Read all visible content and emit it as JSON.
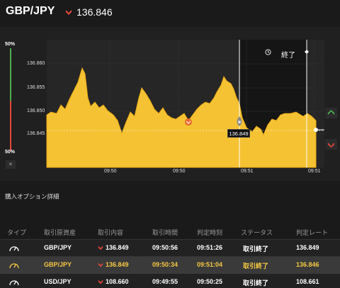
{
  "header": {
    "pair": "GBP/JPY",
    "price": "136.846",
    "arrow_icon": "down-arrow-icon",
    "arrow_color": "#e5473b"
  },
  "chart": {
    "pct_top": "50%",
    "pct_bottom": "50%",
    "close_label": "×",
    "y_ticks": [
      "136.860",
      "136.855",
      "136.850",
      "136.845"
    ],
    "x_ticks": [
      "09:50",
      "09:50",
      "09:51",
      "09:51"
    ],
    "end_label": "終了",
    "end_icon": "clock-icon",
    "current_price_tag": "136.849",
    "fill_color": "#f5c233",
    "up_button_icon": "up-arrow-icon",
    "down_button_icon": "down-arrow-icon",
    "up_color": "#4caf50",
    "down_color": "#e5473b"
  },
  "section": {
    "title": "購入オプション詳細"
  },
  "table": {
    "headers": [
      "タイプ",
      "取引原資産",
      "取引内容",
      "取引時間",
      "判定時刻",
      "ステータス",
      "判定レート"
    ],
    "rows": [
      {
        "type_icon": "gauge-icon",
        "asset": "GBP/JPY",
        "direction": "down",
        "content": "136.849",
        "trade_time": "09:50:56",
        "judge_time": "09:51:26",
        "status": "取引終了",
        "rate": "136.849"
      },
      {
        "type_icon": "gauge-icon",
        "asset": "GBP/JPY",
        "direction": "down",
        "content": "136.849",
        "trade_time": "09:50:34",
        "judge_time": "09:51:04",
        "status": "取引終了",
        "rate": "136.846"
      },
      {
        "type_icon": "gauge-icon",
        "asset": "USD/JPY",
        "direction": "down",
        "content": "108.660",
        "trade_time": "09:49:55",
        "judge_time": "09:50:25",
        "status": "取引終了",
        "rate": "108.661"
      }
    ]
  }
}
